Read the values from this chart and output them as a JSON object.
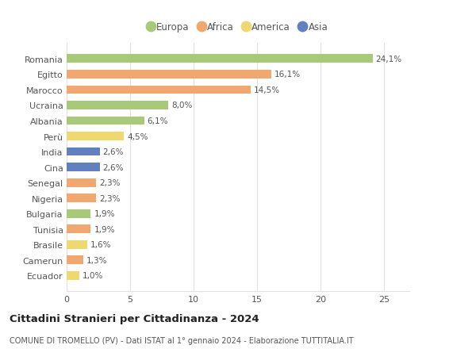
{
  "countries": [
    "Romania",
    "Egitto",
    "Marocco",
    "Ucraina",
    "Albania",
    "Perù",
    "India",
    "Cina",
    "Senegal",
    "Nigeria",
    "Bulgaria",
    "Tunisia",
    "Brasile",
    "Camerun",
    "Ecuador"
  ],
  "values": [
    24.1,
    16.1,
    14.5,
    8.0,
    6.1,
    4.5,
    2.6,
    2.6,
    2.3,
    2.3,
    1.9,
    1.9,
    1.6,
    1.3,
    1.0
  ],
  "labels": [
    "24,1%",
    "16,1%",
    "14,5%",
    "8,0%",
    "6,1%",
    "4,5%",
    "2,6%",
    "2,6%",
    "2,3%",
    "2,3%",
    "1,9%",
    "1,9%",
    "1,6%",
    "1,3%",
    "1,0%"
  ],
  "continents": [
    "Europa",
    "Africa",
    "Africa",
    "Europa",
    "Europa",
    "America",
    "Asia",
    "Asia",
    "Africa",
    "Africa",
    "Europa",
    "Africa",
    "America",
    "Africa",
    "America"
  ],
  "colors": {
    "Europa": "#a8c87a",
    "Africa": "#f0a870",
    "America": "#f0d870",
    "Asia": "#6080c0"
  },
  "xlim": [
    0,
    27
  ],
  "xticks": [
    0,
    5,
    10,
    15,
    20,
    25
  ],
  "title": "Cittadini Stranieri per Cittadinanza - 2024",
  "subtitle": "COMUNE DI TROMELLO (PV) - Dati ISTAT al 1° gennaio 2024 - Elaborazione TUTTITALIA.IT",
  "background_color": "#ffffff",
  "grid_color": "#e0e0e0",
  "bar_height": 0.55,
  "label_fontsize": 7.5,
  "tick_fontsize": 8,
  "legend_order": [
    "Europa",
    "Africa",
    "America",
    "Asia"
  ]
}
